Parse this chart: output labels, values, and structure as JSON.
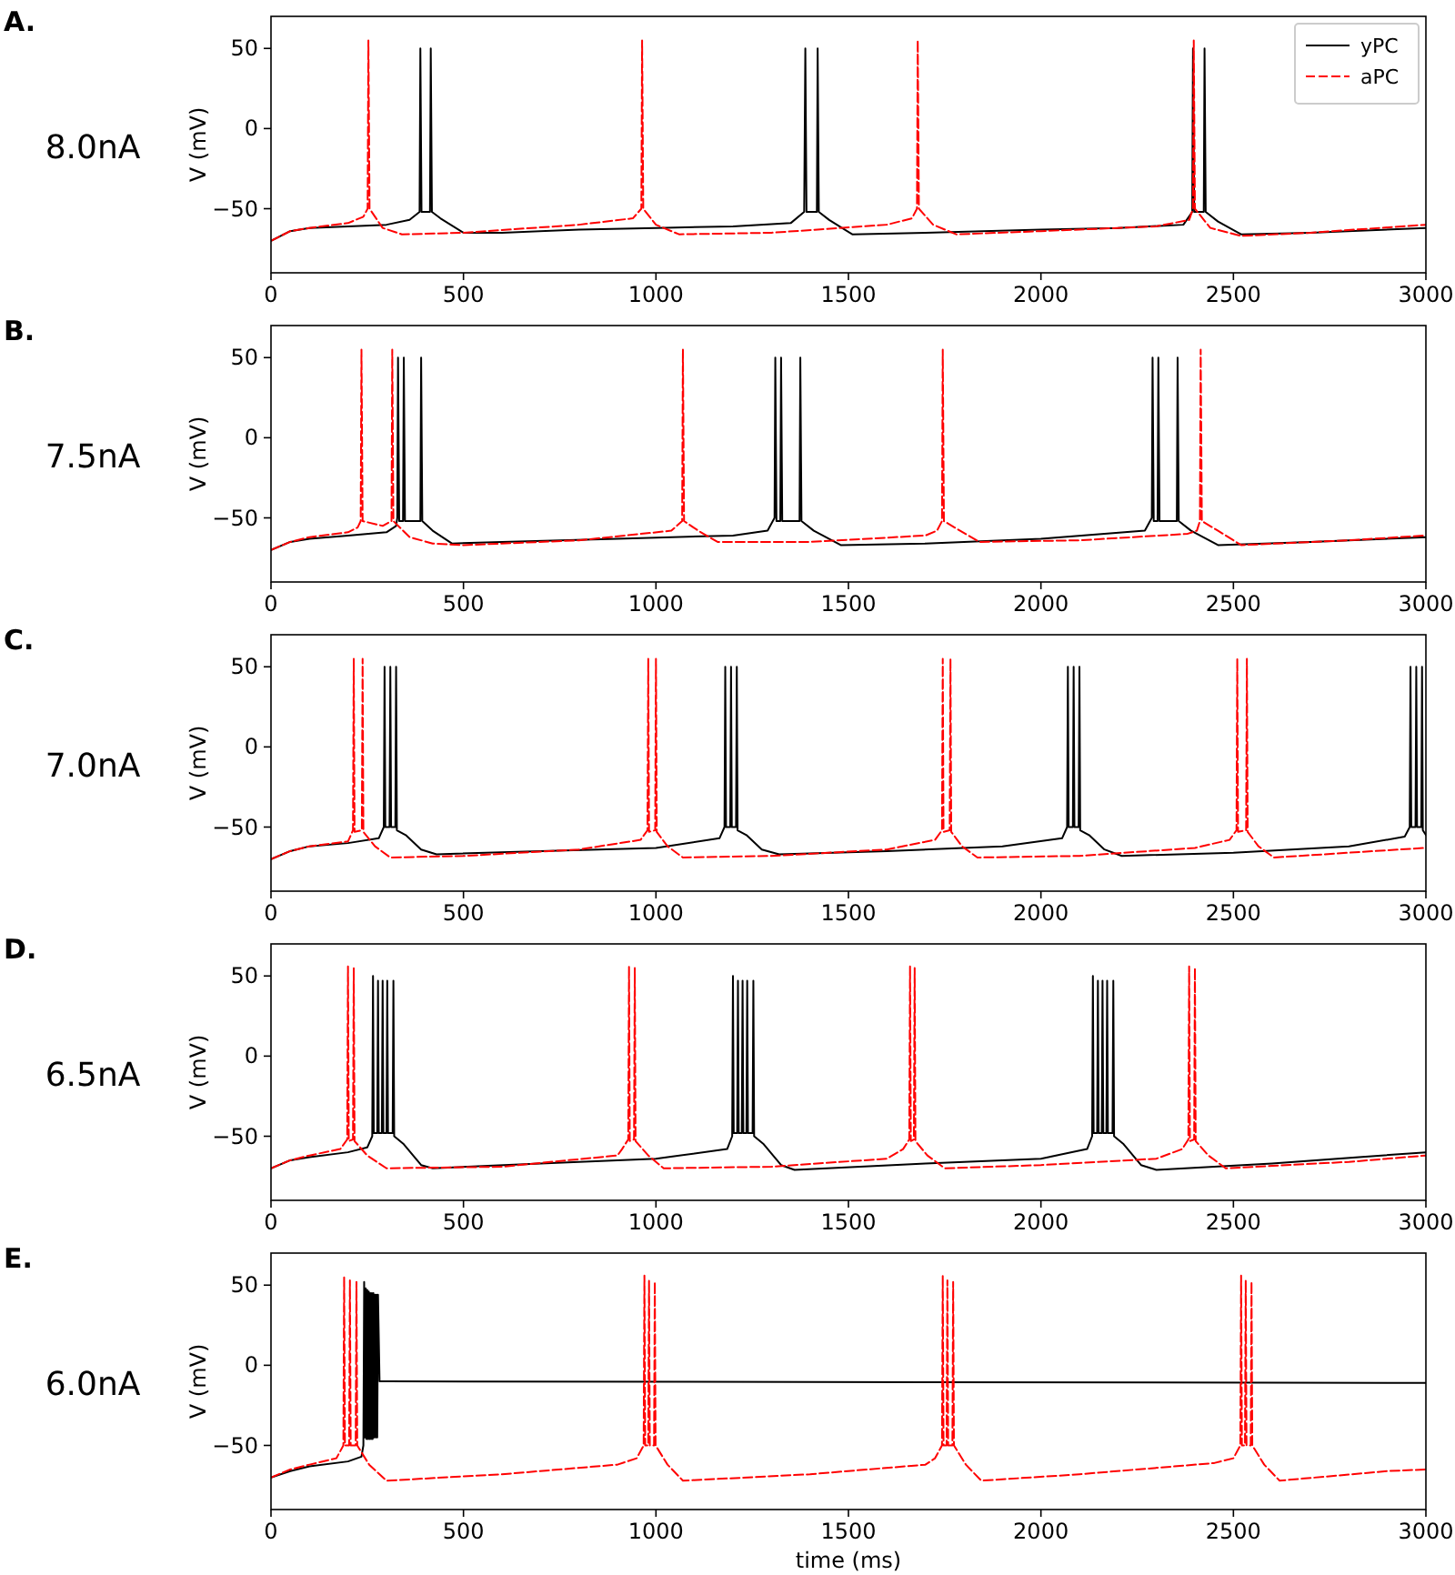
{
  "chart_data": [
    {
      "type": "line",
      "annotations": [
        "A."
      ],
      "subtitle": "8.0nA",
      "ylabel": "V (mV)",
      "xlim": [
        0,
        3000
      ],
      "ylim": [
        -90,
        70
      ],
      "xticks": [
        0,
        500,
        1000,
        1500,
        2000,
        2500,
        3000
      ],
      "yticks": [
        -50,
        0,
        50
      ],
      "legend": "top right",
      "series": [
        {
          "name": "yPC",
          "color": "#000000",
          "line_style": "solid",
          "x": [
            0,
            50,
            100,
            200,
            300,
            360,
            386,
            388,
            391,
            413,
            415,
            418,
            440,
            500,
            600,
            800,
            1000,
            1200,
            1350,
            1385,
            1388,
            1391,
            1418,
            1420,
            1423,
            1450,
            1510,
            1700,
            2000,
            2200,
            2370,
            2393,
            2395,
            2398,
            2423,
            2425,
            2428,
            2460,
            2520,
            2700,
            3000
          ],
          "values": [
            -70,
            -64,
            -62,
            -61,
            -60,
            -57,
            -52,
            50,
            -52,
            -52,
            50,
            -52,
            -56,
            -65,
            -65,
            -63,
            -62,
            -61,
            -59,
            -52,
            50,
            -52,
            -52,
            50,
            -52,
            -57,
            -66,
            -65,
            -63,
            -62,
            -60,
            -52,
            50,
            -52,
            -52,
            50,
            -52,
            -58,
            -66,
            -65,
            -62
          ]
        },
        {
          "name": "aPC",
          "color": "#ff0000",
          "line_style": "dashed",
          "x": [
            0,
            50,
            100,
            200,
            240,
            251,
            253,
            256,
            290,
            340,
            500,
            800,
            940,
            962,
            964,
            967,
            1000,
            1060,
            1300,
            1600,
            1665,
            1678,
            1680,
            1683,
            1720,
            1780,
            2000,
            2300,
            2385,
            2395,
            2397,
            2400,
            2440,
            2520,
            2700,
            3000
          ],
          "values": [
            -70,
            -64,
            -62,
            -59,
            -55,
            -50,
            55,
            -50,
            -62,
            -66,
            -65,
            -60,
            -56,
            -50,
            55,
            -50,
            -60,
            -66,
            -65,
            -60,
            -56,
            -50,
            55,
            -50,
            -60,
            -66,
            -64,
            -61,
            -57,
            -50,
            55,
            -50,
            -62,
            -67,
            -65,
            -60
          ]
        }
      ]
    },
    {
      "type": "line",
      "annotations": [
        "B."
      ],
      "subtitle": "7.5nA",
      "ylabel": "V (mV)",
      "xlim": [
        0,
        3000
      ],
      "ylim": [
        -90,
        70
      ],
      "xticks": [
        0,
        500,
        1000,
        1500,
        2000,
        2500,
        3000
      ],
      "yticks": [
        -50,
        0,
        50
      ],
      "series": [
        {
          "color": "#000000",
          "line_style": "solid",
          "x": [
            0,
            50,
            100,
            200,
            300,
            325,
            328,
            330,
            333,
            343,
            345,
            348,
            388,
            390,
            393,
            420,
            470,
            600,
            900,
            1200,
            1290,
            1308,
            1310,
            1313,
            1323,
            1325,
            1328,
            1373,
            1375,
            1378,
            1410,
            1480,
            1700,
            2000,
            2270,
            2288,
            2290,
            2293,
            2303,
            2305,
            2308,
            2353,
            2355,
            2358,
            2390,
            2460,
            2700,
            3000
          ],
          "values": [
            -70,
            -65,
            -63,
            -61,
            -59,
            -55,
            -50,
            50,
            -52,
            -52,
            50,
            -52,
            -52,
            50,
            -52,
            -58,
            -66,
            -65,
            -63,
            -61,
            -58,
            -50,
            50,
            -52,
            -52,
            50,
            -52,
            -52,
            50,
            -52,
            -58,
            -67,
            -66,
            -63,
            -58,
            -50,
            50,
            -52,
            -52,
            50,
            -52,
            -52,
            50,
            -52,
            -58,
            -67,
            -65,
            -62
          ]
        },
        {
          "color": "#ff0000",
          "line_style": "dashed",
          "x": [
            0,
            50,
            100,
            200,
            225,
            233,
            235,
            238,
            290,
            313,
            315,
            318,
            360,
            420,
            500,
            800,
            1040,
            1068,
            1070,
            1073,
            1110,
            1160,
            1400,
            1700,
            1730,
            1743,
            1745,
            1748,
            1790,
            1840,
            2100,
            2380,
            2405,
            2413,
            2415,
            2418,
            2460,
            2520,
            2800,
            3000
          ],
          "values": [
            -70,
            -65,
            -62,
            -59,
            -56,
            -52,
            55,
            -52,
            -55,
            -52,
            55,
            -52,
            -62,
            -66,
            -67,
            -64,
            -58,
            -52,
            55,
            -52,
            -58,
            -65,
            -65,
            -61,
            -58,
            -52,
            55,
            -52,
            -58,
            -65,
            -64,
            -60,
            -58,
            -52,
            55,
            -52,
            -58,
            -67,
            -64,
            -61
          ]
        }
      ]
    },
    {
      "type": "line",
      "annotations": [
        "C."
      ],
      "subtitle": "7.0nA",
      "ylabel": "V (mV)",
      "xlim": [
        0,
        3000
      ],
      "ylim": [
        -90,
        70
      ],
      "xticks": [
        0,
        500,
        1000,
        1500,
        2000,
        2500,
        3000
      ],
      "yticks": [
        -50,
        0,
        50
      ],
      "series": [
        {
          "color": "#000000",
          "line_style": "solid",
          "x": [
            0,
            50,
            100,
            200,
            280,
            293,
            295,
            297,
            308,
            310,
            312,
            323,
            325,
            327,
            350,
            390,
            430,
            700,
            1000,
            1165,
            1178,
            1180,
            1182,
            1193,
            1195,
            1197,
            1208,
            1210,
            1212,
            1235,
            1275,
            1320,
            1600,
            1900,
            2055,
            2068,
            2070,
            2072,
            2083,
            2085,
            2087,
            2098,
            2100,
            2102,
            2125,
            2165,
            2210,
            2500,
            2800,
            2945,
            2958,
            2960,
            2962,
            2973,
            2975,
            2977,
            2988,
            2990,
            2992,
            3000
          ],
          "values": [
            -70,
            -65,
            -62,
            -60,
            -57,
            -50,
            50,
            -50,
            -50,
            50,
            -50,
            -50,
            50,
            -52,
            -55,
            -64,
            -67,
            -65,
            -63,
            -57,
            -50,
            50,
            -50,
            -50,
            50,
            -50,
            -50,
            50,
            -52,
            -55,
            -64,
            -67,
            -65,
            -62,
            -57,
            -50,
            50,
            -50,
            -50,
            50,
            -50,
            -50,
            50,
            -52,
            -55,
            -64,
            -68,
            -66,
            -62,
            -56,
            -50,
            50,
            -50,
            -50,
            50,
            -50,
            -50,
            50,
            -52,
            -55
          ]
        },
        {
          "color": "#ff0000",
          "line_style": "dashed",
          "x": [
            0,
            50,
            100,
            200,
            213,
            215,
            217,
            236,
            238,
            240,
            270,
            310,
            500,
            800,
            960,
            978,
            980,
            982,
            998,
            1000,
            1002,
            1030,
            1070,
            1300,
            1600,
            1725,
            1743,
            1745,
            1747,
            1763,
            1765,
            1767,
            1795,
            1835,
            2100,
            2400,
            2490,
            2508,
            2510,
            2512,
            2533,
            2535,
            2537,
            2565,
            2605,
            2800,
            3000
          ],
          "values": [
            -70,
            -65,
            -62,
            -59,
            -52,
            55,
            -53,
            -52,
            55,
            -53,
            -62,
            -69,
            -68,
            -64,
            -58,
            -52,
            55,
            -53,
            -52,
            55,
            -53,
            -62,
            -69,
            -68,
            -64,
            -58,
            -52,
            55,
            -53,
            -52,
            55,
            -53,
            -62,
            -69,
            -68,
            -63,
            -58,
            -52,
            55,
            -53,
            -52,
            55,
            -53,
            -62,
            -69,
            -66,
            -63
          ]
        }
      ]
    },
    {
      "type": "line",
      "annotations": [
        "D."
      ],
      "subtitle": "6.5nA",
      "ylabel": "V (mV)",
      "xlim": [
        0,
        3000
      ],
      "ylim": [
        -90,
        70
      ],
      "xticks": [
        0,
        500,
        1000,
        1500,
        2000,
        2500,
        3000
      ],
      "yticks": [
        -50,
        0,
        50
      ],
      "series": [
        {
          "color": "#000000",
          "line_style": "solid",
          "x": [
            0,
            50,
            100,
            200,
            250,
            263,
            265,
            267,
            276,
            278,
            280,
            288,
            290,
            292,
            300,
            302,
            304,
            316,
            318,
            320,
            345,
            390,
            420,
            700,
            1000,
            1185,
            1198,
            1200,
            1202,
            1211,
            1213,
            1215,
            1223,
            1225,
            1227,
            1235,
            1237,
            1239,
            1251,
            1253,
            1255,
            1280,
            1325,
            1360,
            1700,
            2000,
            2120,
            2133,
            2135,
            2137,
            2146,
            2148,
            2150,
            2158,
            2160,
            2162,
            2170,
            2172,
            2174,
            2186,
            2188,
            2190,
            2215,
            2260,
            2300,
            2600,
            3000
          ],
          "values": [
            -70,
            -65,
            -63,
            -60,
            -57,
            -50,
            50,
            -48,
            -48,
            47,
            -48,
            -48,
            47,
            -48,
            -48,
            47,
            -48,
            -48,
            47,
            -50,
            -55,
            -68,
            -70,
            -67,
            -64,
            -58,
            -50,
            50,
            -48,
            -48,
            47,
            -48,
            -48,
            47,
            -48,
            -48,
            47,
            -48,
            -48,
            47,
            -50,
            -55,
            -68,
            -71,
            -67,
            -64,
            -58,
            -50,
            50,
            -48,
            -48,
            47,
            -48,
            -48,
            47,
            -48,
            -48,
            47,
            -48,
            -48,
            47,
            -50,
            -55,
            -68,
            -71,
            -67,
            -60
          ]
        },
        {
          "color": "#ff0000",
          "line_style": "dashed",
          "x": [
            0,
            50,
            100,
            180,
            198,
            200,
            202,
            213,
            215,
            217,
            250,
            300,
            600,
            900,
            912,
            928,
            930,
            932,
            943,
            945,
            947,
            980,
            1020,
            1300,
            1600,
            1642,
            1658,
            1660,
            1662,
            1670,
            1672,
            1674,
            1705,
            1750,
            2000,
            2300,
            2367,
            2383,
            2385,
            2387,
            2398,
            2400,
            2402,
            2435,
            2480,
            2800,
            3000
          ],
          "values": [
            -70,
            -65,
            -62,
            -58,
            -52,
            56,
            -53,
            -52,
            55,
            -53,
            -62,
            -70,
            -69,
            -62,
            -58,
            -52,
            56,
            -53,
            -52,
            55,
            -53,
            -62,
            -70,
            -69,
            -64,
            -58,
            -52,
            56,
            -53,
            -52,
            55,
            -53,
            -62,
            -70,
            -68,
            -64,
            -58,
            -52,
            56,
            -53,
            -52,
            55,
            -53,
            -62,
            -70,
            -66,
            -62
          ]
        }
      ]
    },
    {
      "type": "line",
      "annotations": [
        "E."
      ],
      "subtitle": "6.0nA",
      "ylabel": "V (mV)",
      "xlabel": "time (ms)",
      "xlim": [
        0,
        3000
      ],
      "ylim": [
        -90,
        70
      ],
      "xticks": [
        0,
        500,
        1000,
        1500,
        2000,
        2500,
        3000
      ],
      "yticks": [
        -50,
        0,
        50
      ],
      "series": [
        {
          "color": "#000000",
          "line_style": "solid",
          "x": [
            0,
            50,
            100,
            200,
            235,
            240,
            242,
            244,
            246,
            248,
            250,
            252,
            254,
            256,
            258,
            260,
            262,
            264,
            266,
            268,
            270,
            272,
            274,
            276,
            278,
            282,
            300,
            3000
          ],
          "values": [
            -70,
            -66,
            -63,
            -60,
            -57,
            -50,
            52,
            -45,
            48,
            -46,
            47,
            -46,
            46,
            -46,
            45,
            -46,
            45,
            -46,
            45,
            -45,
            44,
            -45,
            44,
            -45,
            44,
            -10,
            -10,
            -11
          ]
        },
        {
          "color": "#ff0000",
          "line_style": "dashed",
          "x": [
            0,
            50,
            100,
            170,
            188,
            190,
            192,
            203,
            205,
            207,
            220,
            222,
            224,
            255,
            300,
            600,
            900,
            950,
            968,
            970,
            972,
            980,
            982,
            984,
            995,
            997,
            999,
            1030,
            1070,
            1400,
            1700,
            1725,
            1743,
            1745,
            1747,
            1755,
            1757,
            1759,
            1770,
            1772,
            1774,
            1805,
            1845,
            2100,
            2450,
            2500,
            2518,
            2520,
            2522,
            2530,
            2532,
            2534,
            2545,
            2547,
            2549,
            2580,
            2620,
            2900,
            3000
          ],
          "values": [
            -70,
            -65,
            -62,
            -58,
            -50,
            55,
            -50,
            -50,
            53,
            -50,
            -50,
            52,
            -50,
            -62,
            -72,
            -68,
            -62,
            -58,
            -50,
            56,
            -50,
            -50,
            53,
            -50,
            -50,
            52,
            -50,
            -62,
            -72,
            -68,
            -62,
            -58,
            -50,
            56,
            -50,
            -50,
            53,
            -50,
            -50,
            52,
            -50,
            -62,
            -72,
            -68,
            -61,
            -58,
            -50,
            56,
            -50,
            -50,
            53,
            -50,
            -50,
            52,
            -50,
            -62,
            -72,
            -66,
            -65
          ]
        }
      ]
    }
  ]
}
